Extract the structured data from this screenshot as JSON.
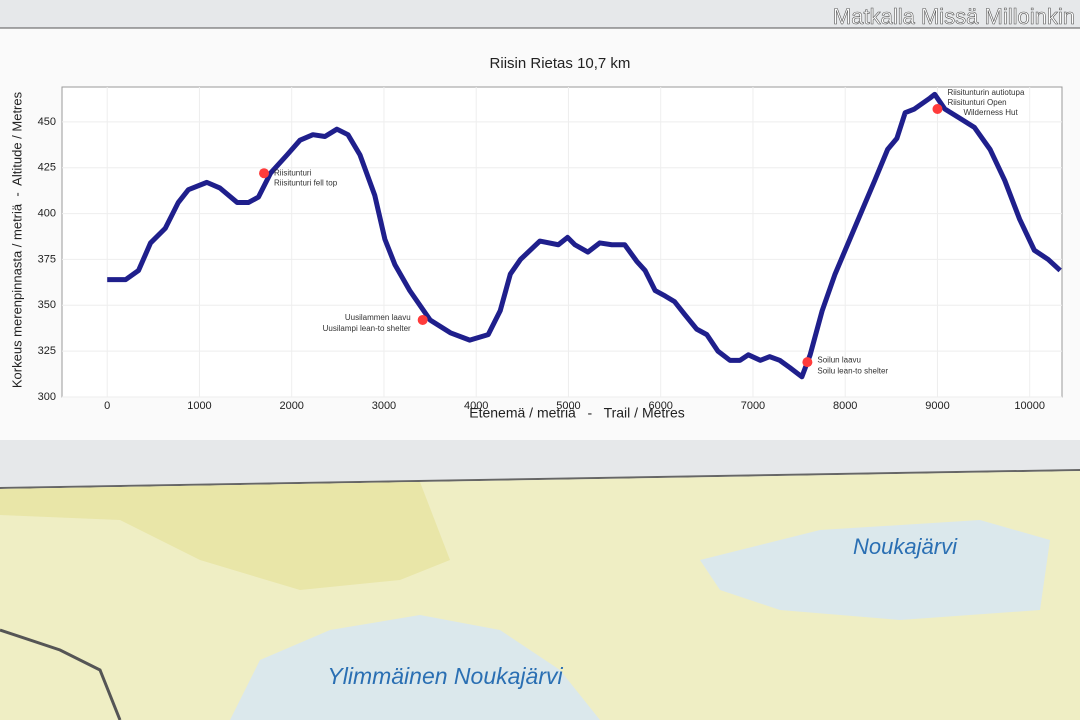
{
  "watermark": "Matkalla Missä Milloinkin",
  "chart_data": {
    "type": "line",
    "title": "Riisin Rietas 10,7 km",
    "x_label": "Etenemä / metriä   -   Trail / Metres",
    "y_label": "Korkeus merenpinnasta / metriä  -  Altitude / Metres",
    "x": [
      0,
      200,
      340,
      470,
      630,
      770,
      880,
      1080,
      1220,
      1410,
      1530,
      1640,
      1770,
      1950,
      2090,
      2230,
      2360,
      2490,
      2610,
      2740,
      2900,
      3010,
      3120,
      3280,
      3500,
      3720,
      3930,
      4130,
      4260,
      4370,
      4480,
      4690,
      4890,
      4990,
      5070,
      5210,
      5340,
      5470,
      5610,
      5740,
      5830,
      5940,
      6050,
      6150,
      6260,
      6390,
      6500,
      6620,
      6750,
      6860,
      6950,
      7080,
      7180,
      7290,
      7400,
      7530,
      7620,
      7750,
      7890,
      8050,
      8210,
      8320,
      8460,
      8560,
      8650,
      8750,
      8920,
      8970,
      9080,
      9240,
      9400,
      9570,
      9730,
      9890,
      10050,
      10200,
      10330
    ],
    "series": [
      {
        "name": "Altitude",
        "color": "#1f1f8c",
        "values": [
          364,
          364,
          369,
          384,
          392,
          406,
          413,
          417,
          414,
          406,
          406,
          409,
          422,
          432,
          440,
          443,
          442,
          446,
          443,
          432,
          410,
          386,
          372,
          358,
          342,
          335,
          331,
          334,
          347,
          367,
          375,
          385,
          383,
          387,
          383,
          379,
          384,
          383,
          383,
          374,
          369,
          358,
          355,
          352,
          345,
          337,
          334,
          325,
          320,
          320,
          323,
          320,
          322,
          320,
          316,
          311,
          323,
          347,
          367,
          386,
          405,
          418,
          435,
          441,
          455,
          457,
          463,
          465,
          457,
          452,
          447,
          435,
          418,
          397,
          380,
          375,
          369
        ]
      }
    ],
    "annotations": [
      {
        "x": 1700,
        "y": 422,
        "color": "#ff3b3b",
        "label": [
          "Riisitunturi",
          "Riisitunturi fell top"
        ]
      },
      {
        "x": 3420,
        "y": 342,
        "color": "#ff3b3b",
        "label": [
          "Uusilammen laavu",
          "Uusilampi lean-to shelter"
        ]
      },
      {
        "x": 7590,
        "y": 319,
        "color": "#ff3b3b",
        "label": [
          "Soilun laavu",
          "Soilu lean-to shelter"
        ]
      },
      {
        "x": 9000,
        "y": 457,
        "color": "#ff3b3b",
        "label": [
          "Riisitunturin autiotupa",
          "Riisitunturi Open",
          "Wilderness Hut"
        ]
      }
    ],
    "xlim": [
      -490,
      10350
    ],
    "ylim": [
      300,
      469
    ],
    "xticks": [
      0,
      1000,
      2000,
      3000,
      4000,
      5000,
      6000,
      7000,
      8000,
      9000,
      10000
    ],
    "yticks": [
      300,
      325,
      350,
      375,
      400,
      425,
      450
    ],
    "grid": true
  },
  "map": {
    "labels": [
      "Noukajärvi",
      "Ylimmäinen Noukajärvi"
    ]
  }
}
